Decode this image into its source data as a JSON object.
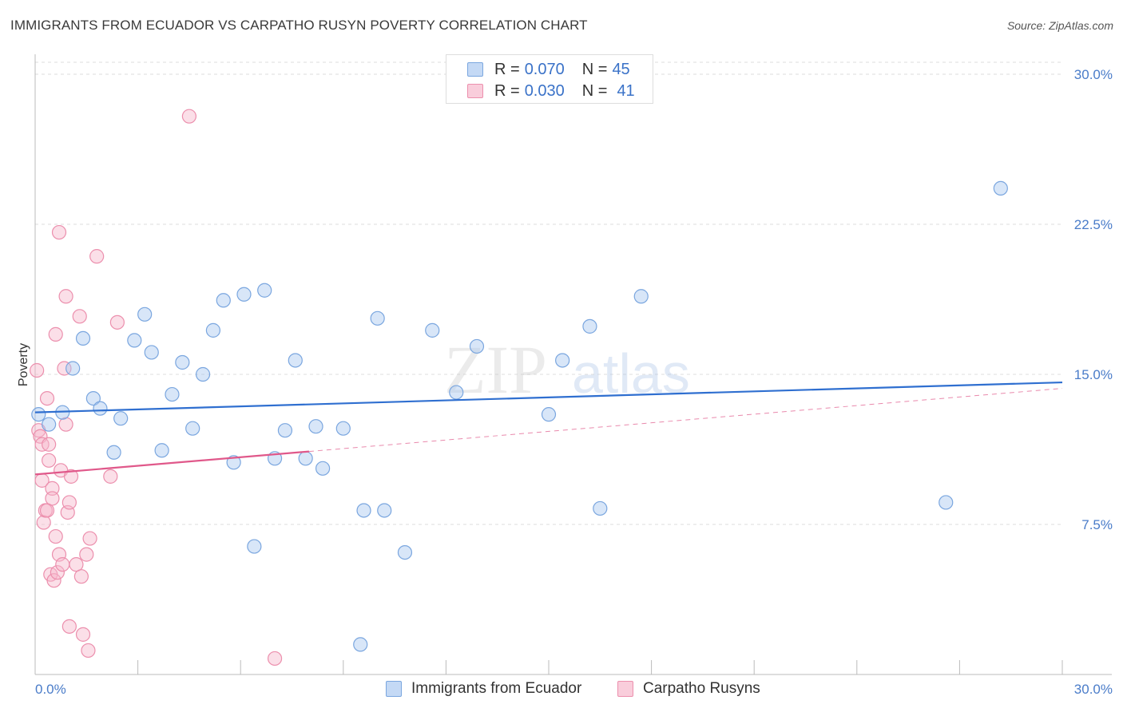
{
  "header": {
    "title": "IMMIGRANTS FROM ECUADOR VS CARPATHO RUSYN POVERTY CORRELATION CHART",
    "source": "Source: ZipAtlas.com"
  },
  "watermark": {
    "zip": "ZIP",
    "atlas": "atlas"
  },
  "legend": {
    "rows": [
      {
        "r_label": "R =",
        "r_value": "0.070",
        "n_label": "N =",
        "n_value": "45"
      },
      {
        "r_label": "R =",
        "r_value": "0.030",
        "n_label": "N =",
        "n_value": "41"
      }
    ]
  },
  "bottom_legend": {
    "items": [
      {
        "label": "Immigrants from Ecuador"
      },
      {
        "label": "Carpatho Rusyns"
      }
    ]
  },
  "colors": {
    "blue_fill": "#a9c8f0",
    "blue_stroke": "#7aa6df",
    "blue_line": "#2f6fd0",
    "pink_fill": "#f6b8cb",
    "pink_stroke": "#ec8fad",
    "pink_line": "#e0588a",
    "grid": "#dddddd",
    "axis": "#bbbbbb",
    "tick_text": "#4a7cc9"
  },
  "chart_data": {
    "type": "scatter",
    "title": "IMMIGRANTS FROM ECUADOR VS CARPATHO RUSYN POVERTY CORRELATION CHART",
    "xlabel": "",
    "ylabel": "Poverty",
    "xlim": [
      0,
      30
    ],
    "ylim": [
      0,
      30.6
    ],
    "x_tick_labels": [
      "0.0%",
      "30.0%"
    ],
    "y_ticks": [
      7.5,
      15.0,
      22.5,
      30.0
    ],
    "y_tick_labels": [
      "7.5%",
      "15.0%",
      "22.5%",
      "30.0%"
    ],
    "grid": true,
    "series": [
      {
        "name": "Immigrants from Ecuador",
        "r": 0.07,
        "n": 45,
        "trend": {
          "x": [
            0,
            30
          ],
          "y": [
            13.1,
            14.6
          ]
        },
        "points": [
          [
            0.1,
            13.0
          ],
          [
            0.4,
            12.5
          ],
          [
            0.8,
            13.1
          ],
          [
            1.1,
            15.3
          ],
          [
            1.4,
            16.8
          ],
          [
            1.7,
            13.8
          ],
          [
            1.9,
            13.3
          ],
          [
            2.3,
            11.1
          ],
          [
            2.5,
            12.8
          ],
          [
            2.9,
            16.7
          ],
          [
            3.2,
            18.0
          ],
          [
            3.4,
            16.1
          ],
          [
            3.7,
            11.2
          ],
          [
            4.0,
            14.0
          ],
          [
            4.3,
            15.6
          ],
          [
            4.6,
            12.3
          ],
          [
            4.9,
            15.0
          ],
          [
            5.2,
            17.2
          ],
          [
            5.5,
            18.7
          ],
          [
            5.8,
            10.6
          ],
          [
            6.1,
            19.0
          ],
          [
            6.4,
            6.4
          ],
          [
            6.7,
            19.2
          ],
          [
            7.0,
            10.8
          ],
          [
            7.3,
            12.2
          ],
          [
            7.6,
            15.7
          ],
          [
            7.9,
            10.8
          ],
          [
            8.2,
            12.4
          ],
          [
            8.4,
            10.3
          ],
          [
            9.0,
            12.3
          ],
          [
            9.5,
            1.5
          ],
          [
            9.6,
            8.2
          ],
          [
            10.0,
            17.8
          ],
          [
            10.2,
            8.2
          ],
          [
            10.8,
            6.1
          ],
          [
            11.6,
            17.2
          ],
          [
            12.3,
            14.1
          ],
          [
            12.9,
            16.4
          ],
          [
            15.0,
            13.0
          ],
          [
            15.4,
            15.7
          ],
          [
            16.2,
            17.4
          ],
          [
            16.5,
            8.3
          ],
          [
            17.7,
            18.9
          ],
          [
            26.6,
            8.6
          ],
          [
            28.2,
            24.3
          ]
        ]
      },
      {
        "name": "Carpatho Rusyns",
        "r": 0.03,
        "n": 41,
        "trend": {
          "x": [
            0,
            30
          ],
          "y": [
            10.0,
            14.3
          ]
        },
        "trend_solid_until_x": 8,
        "points": [
          [
            0.05,
            15.2
          ],
          [
            0.1,
            12.2
          ],
          [
            0.15,
            11.9
          ],
          [
            0.2,
            11.5
          ],
          [
            0.2,
            9.7
          ],
          [
            0.25,
            7.6
          ],
          [
            0.3,
            8.2
          ],
          [
            0.35,
            8.2
          ],
          [
            0.35,
            13.8
          ],
          [
            0.4,
            11.5
          ],
          [
            0.4,
            10.7
          ],
          [
            0.45,
            5.0
          ],
          [
            0.5,
            9.3
          ],
          [
            0.5,
            8.8
          ],
          [
            0.55,
            4.7
          ],
          [
            0.6,
            17.0
          ],
          [
            0.6,
            6.9
          ],
          [
            0.65,
            5.1
          ],
          [
            0.7,
            22.1
          ],
          [
            0.7,
            6.0
          ],
          [
            0.75,
            10.2
          ],
          [
            0.8,
            5.5
          ],
          [
            0.85,
            15.3
          ],
          [
            0.9,
            18.9
          ],
          [
            0.9,
            12.5
          ],
          [
            0.95,
            8.1
          ],
          [
            1.0,
            8.6
          ],
          [
            1.0,
            2.4
          ],
          [
            1.05,
            9.9
          ],
          [
            1.2,
            5.5
          ],
          [
            1.3,
            17.9
          ],
          [
            1.35,
            4.9
          ],
          [
            1.4,
            2.0
          ],
          [
            1.5,
            6.0
          ],
          [
            1.55,
            1.2
          ],
          [
            1.6,
            6.8
          ],
          [
            1.8,
            20.9
          ],
          [
            2.2,
            9.9
          ],
          [
            2.4,
            17.6
          ],
          [
            4.5,
            27.9
          ],
          [
            7.0,
            0.8
          ]
        ]
      }
    ]
  }
}
